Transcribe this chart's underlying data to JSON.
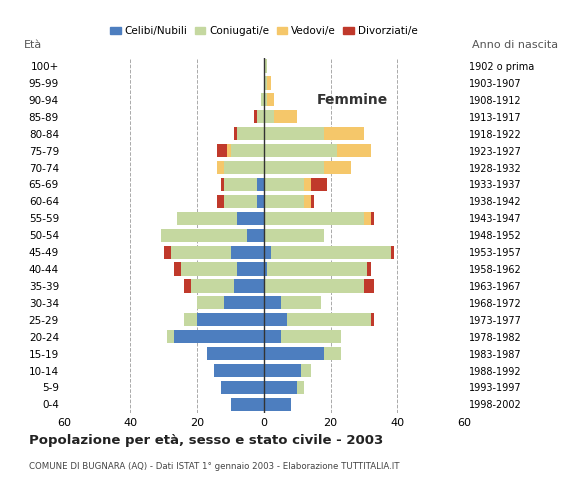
{
  "age_groups": [
    "0-4",
    "5-9",
    "10-14",
    "15-19",
    "20-24",
    "25-29",
    "30-34",
    "35-39",
    "40-44",
    "45-49",
    "50-54",
    "55-59",
    "60-64",
    "65-69",
    "70-74",
    "75-79",
    "80-84",
    "85-89",
    "90-94",
    "95-99",
    "100+"
  ],
  "birth_years": [
    "1998-2002",
    "1993-1997",
    "1988-1992",
    "1983-1987",
    "1978-1982",
    "1973-1977",
    "1968-1972",
    "1963-1967",
    "1958-1962",
    "1953-1957",
    "1948-1952",
    "1943-1947",
    "1938-1942",
    "1933-1937",
    "1928-1932",
    "1923-1927",
    "1918-1922",
    "1913-1917",
    "1908-1912",
    "1903-1907",
    "1902 o prima"
  ],
  "male": {
    "celibe": [
      10,
      13,
      15,
      17,
      27,
      20,
      12,
      9,
      8,
      10,
      5,
      8,
      2,
      2,
      0,
      0,
      0,
      0,
      0,
      0,
      0
    ],
    "coniugato": [
      0,
      0,
      0,
      0,
      2,
      4,
      8,
      13,
      17,
      18,
      26,
      18,
      10,
      10,
      12,
      10,
      8,
      2,
      1,
      0,
      0
    ],
    "vedovo": [
      0,
      0,
      0,
      0,
      0,
      0,
      0,
      0,
      0,
      0,
      0,
      0,
      0,
      0,
      2,
      1,
      0,
      0,
      0,
      0,
      0
    ],
    "divorziato": [
      0,
      0,
      0,
      0,
      0,
      0,
      0,
      2,
      2,
      2,
      0,
      0,
      2,
      1,
      0,
      3,
      1,
      1,
      0,
      0,
      0
    ]
  },
  "female": {
    "nubile": [
      8,
      10,
      11,
      18,
      5,
      7,
      5,
      0,
      1,
      2,
      0,
      0,
      0,
      0,
      0,
      0,
      0,
      0,
      0,
      0,
      0
    ],
    "coniugata": [
      0,
      2,
      3,
      5,
      18,
      25,
      12,
      30,
      30,
      36,
      18,
      30,
      12,
      12,
      18,
      22,
      18,
      3,
      1,
      1,
      1
    ],
    "vedova": [
      0,
      0,
      0,
      0,
      0,
      0,
      0,
      0,
      0,
      0,
      0,
      2,
      2,
      2,
      8,
      10,
      12,
      7,
      2,
      1,
      0
    ],
    "divorziata": [
      0,
      0,
      0,
      0,
      0,
      1,
      0,
      3,
      1,
      1,
      0,
      1,
      1,
      5,
      0,
      0,
      0,
      0,
      0,
      0,
      0
    ]
  },
  "colors": {
    "celibe": "#4d7ebf",
    "coniugato": "#c5d8a0",
    "vedovo": "#f5c76a",
    "divorziato": "#c0392b"
  },
  "title": "Popolazione per età, sesso e stato civile - 2003",
  "subtitle": "COMUNE DI BUGNARA (AQ) - Dati ISTAT 1° gennaio 2003 - Elaborazione TUTTITALIA.IT",
  "xlabel_right": "Femmine",
  "ylabel_left": "Età",
  "ylabel_right": "Anno di nascita",
  "xlim": 60,
  "legend_labels": [
    "Celibi/Nubili",
    "Coniugati/e",
    "Vedovi/e",
    "Divorziati/e"
  ],
  "background_color": "#ffffff"
}
